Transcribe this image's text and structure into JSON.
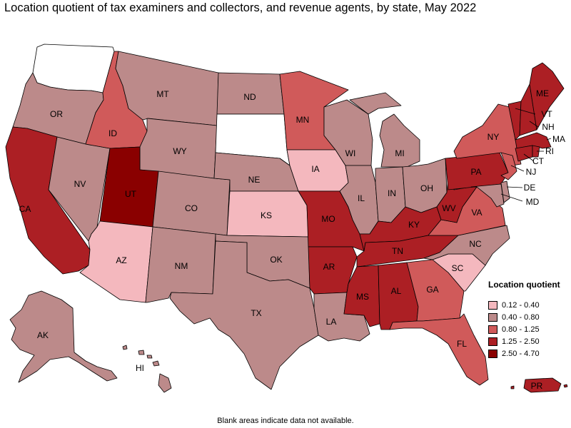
{
  "title": "Location quotient of tax examiners and collectors, and revenue agents, by state, May 2022",
  "footnote": "Blank areas indicate data not available.",
  "legend": {
    "title": "Location quotient",
    "items": [
      {
        "label": "0.12 - 0.40",
        "color": "#f4b8be"
      },
      {
        "label": "0.40 - 0.80",
        "color": "#bc8a8a"
      },
      {
        "label": "0.80 - 1.25",
        "color": "#d05a5a"
      },
      {
        "label": "1.25 - 2.50",
        "color": "#ac1f24"
      },
      {
        "label": "2.50 - 4.70",
        "color": "#8a0000"
      }
    ]
  },
  "no_data_color": "#ffffff",
  "states": {
    "WA": {
      "label": "",
      "class": null
    },
    "OR": {
      "label": "OR",
      "class": 1
    },
    "CA": {
      "label": "CA",
      "class": 3
    },
    "NV": {
      "label": "NV",
      "class": 1
    },
    "ID": {
      "label": "ID",
      "class": 2
    },
    "MT": {
      "label": "MT",
      "class": 1
    },
    "WY": {
      "label": "WY",
      "class": 1
    },
    "UT": {
      "label": "UT",
      "class": 4
    },
    "AZ": {
      "label": "AZ",
      "class": 0
    },
    "CO": {
      "label": "CO",
      "class": 1
    },
    "NM": {
      "label": "NM",
      "class": 1
    },
    "ND": {
      "label": "ND",
      "class": 1
    },
    "SD": {
      "label": "",
      "class": null
    },
    "NE": {
      "label": "NE",
      "class": 1
    },
    "KS": {
      "label": "KS",
      "class": 0
    },
    "OK": {
      "label": "OK",
      "class": 1
    },
    "TX": {
      "label": "TX",
      "class": 1
    },
    "MN": {
      "label": "MN",
      "class": 2
    },
    "IA": {
      "label": "IA",
      "class": 0
    },
    "MO": {
      "label": "MO",
      "class": 3
    },
    "AR": {
      "label": "AR",
      "class": 3
    },
    "LA": {
      "label": "LA",
      "class": 1
    },
    "WI": {
      "label": "WI",
      "class": 1
    },
    "IL": {
      "label": "IL",
      "class": 1
    },
    "MI": {
      "label": "MI",
      "class": 1
    },
    "IN": {
      "label": "IN",
      "class": 1
    },
    "OH": {
      "label": "OH",
      "class": 1
    },
    "KY": {
      "label": "KY",
      "class": 3
    },
    "TN": {
      "label": "TN",
      "class": 3
    },
    "MS": {
      "label": "MS",
      "class": 3
    },
    "AL": {
      "label": "AL",
      "class": 3
    },
    "GA": {
      "label": "GA",
      "class": 2
    },
    "FL": {
      "label": "FL",
      "class": 2
    },
    "SC": {
      "label": "SC",
      "class": 0
    },
    "NC": {
      "label": "NC",
      "class": 1
    },
    "VA": {
      "label": "VA",
      "class": 2
    },
    "WV": {
      "label": "WV",
      "class": 3
    },
    "PA": {
      "label": "PA",
      "class": 3
    },
    "NY": {
      "label": "NY",
      "class": 2
    },
    "NJ": {
      "label": "NJ",
      "class": 2
    },
    "DE": {
      "label": "DE",
      "class": 1
    },
    "MD": {
      "label": "MD",
      "class": 1
    },
    "CT": {
      "label": "CT",
      "class": 3
    },
    "RI": {
      "label": "RI",
      "class": 3
    },
    "MA": {
      "label": "MA",
      "class": 3
    },
    "VT": {
      "label": "VT",
      "class": 3
    },
    "NH": {
      "label": "NH",
      "class": 3
    },
    "ME": {
      "label": "ME",
      "class": 3
    },
    "AK": {
      "label": "AK",
      "class": 1
    },
    "HI": {
      "label": "HI",
      "class": 1
    },
    "PR": {
      "label": "PR",
      "class": 3
    }
  }
}
